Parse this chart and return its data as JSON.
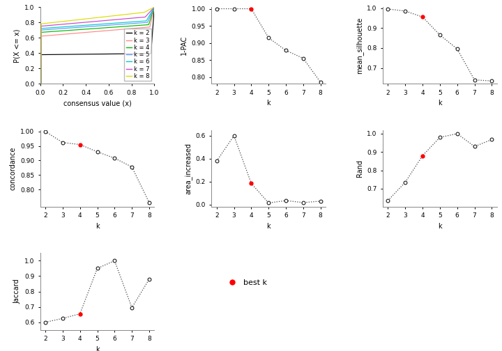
{
  "k_values": [
    2,
    3,
    4,
    5,
    6,
    7,
    8
  ],
  "best_k": 4,
  "pac_1minus": [
    1.0,
    1.0,
    1.0,
    0.915,
    0.878,
    0.855,
    0.785
  ],
  "mean_silhouette": [
    0.995,
    0.985,
    0.955,
    0.865,
    0.795,
    0.64,
    0.635
  ],
  "concordance": [
    1.0,
    0.962,
    0.955,
    0.93,
    0.908,
    0.878,
    0.755
  ],
  "area_increased": [
    0.38,
    0.6,
    0.185,
    0.015,
    0.035,
    0.018,
    0.03
  ],
  "rand": [
    0.635,
    0.735,
    0.88,
    0.98,
    1.0,
    0.93,
    0.968
  ],
  "jaccard": [
    0.6,
    0.625,
    0.655,
    0.95,
    1.0,
    0.695,
    0.88
  ],
  "colors_ecdf": [
    "#000000",
    "#FF8888",
    "#00BB00",
    "#6699FF",
    "#00CCCC",
    "#CC44CC",
    "#DDDD00"
  ],
  "line_color": "#444444",
  "dot_open_color": "white",
  "dot_edge_color": "black",
  "best_k_color": "red",
  "bg_color": "white",
  "axis_label_fontsize": 7,
  "tick_fontsize": 6.5,
  "legend_fontsize": 6
}
